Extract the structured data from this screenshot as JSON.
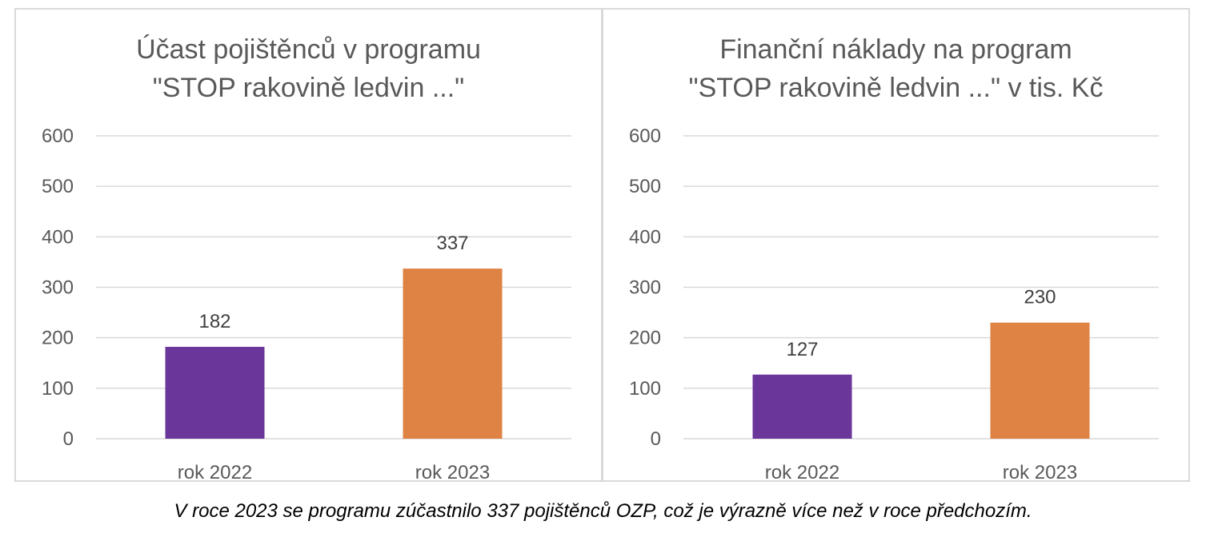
{
  "chart_data": [
    {
      "type": "bar",
      "title_lines": [
        "Účast pojištěnců v programu",
        "\"STOP rakovině ledvin ...\""
      ],
      "categories": [
        "rok 2022",
        "rok 2023"
      ],
      "values": [
        182,
        337
      ],
      "data_labels": [
        "182",
        "337"
      ],
      "bar_colors": [
        "#6a3699",
        "#df8344"
      ],
      "ylim": [
        0,
        600
      ],
      "yticks": [
        0,
        100,
        200,
        300,
        400,
        500,
        600
      ],
      "ytick_labels": [
        "0",
        "100",
        "200",
        "300",
        "400",
        "500",
        "600"
      ],
      "grid": true,
      "legend": "none"
    },
    {
      "type": "bar",
      "title_lines": [
        "Finanční náklady na program",
        "\"STOP rakovině ledvin ...\" v tis. Kč"
      ],
      "categories": [
        "rok 2022",
        "rok 2023"
      ],
      "values": [
        127,
        230
      ],
      "data_labels": [
        "127",
        "230"
      ],
      "bar_colors": [
        "#6a3699",
        "#df8344"
      ],
      "ylim": [
        0,
        600
      ],
      "yticks": [
        0,
        100,
        200,
        300,
        400,
        500,
        600
      ],
      "ytick_labels": [
        "0",
        "100",
        "200",
        "300",
        "400",
        "500",
        "600"
      ],
      "grid": true,
      "legend": "none"
    }
  ],
  "caption": "V roce 2023 se programu zúčastnilo 337 pojištěnců OZP, což je výrazně více než v roce předchozím."
}
